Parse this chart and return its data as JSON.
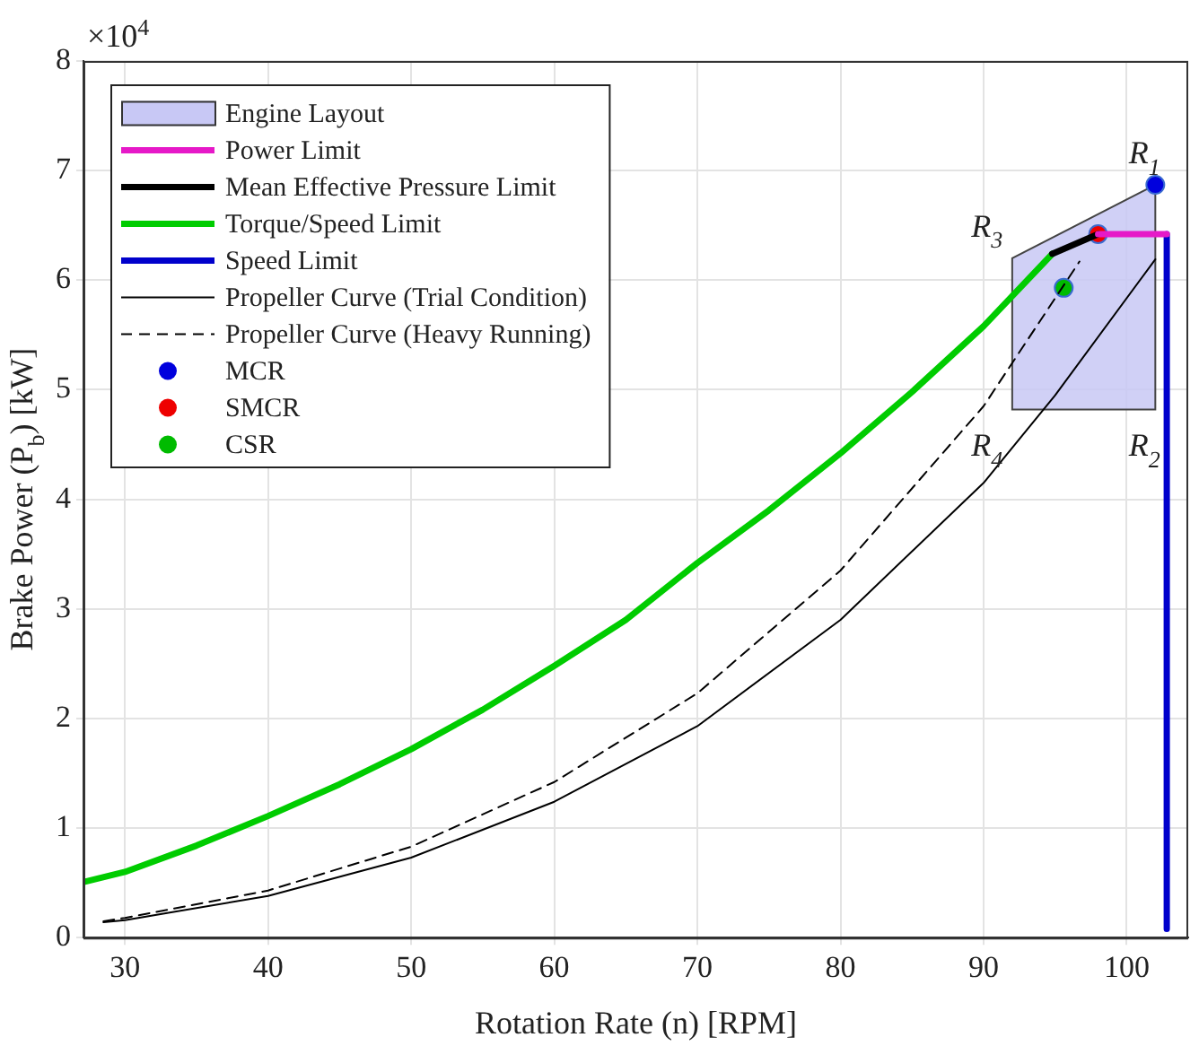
{
  "chart_data": {
    "type": "line",
    "xlabel": "Rotation Rate (n) [RPM]",
    "ylabel": "Brake Power (P$_{b}$) [kW]",
    "xlim": [
      27.1,
      104.3
    ],
    "xticks": [
      30,
      40,
      50,
      60,
      70,
      80,
      90,
      100
    ],
    "ylim": [
      0,
      8
    ],
    "yticks": [
      0,
      1,
      2,
      3,
      4,
      5,
      6,
      7,
      8
    ],
    "grid": true,
    "legend": "top left",
    "marker": "none",
    "annotations": [
      "×10$^{4}$",
      "R$_{1}$",
      "R$_{2}$",
      "R$_{4}$",
      "R$_{3}$"
    ],
    "series": [
      {
        "name": "Engine Layout",
        "type": "area",
        "color": "#c8c8f5",
        "x": [
          102,
          102,
          92,
          92,
          102
        ],
        "values": [
          6.87,
          4.82,
          4.82,
          6.2,
          6.87
        ]
      },
      {
        "name": "Power Limit",
        "color": "#e619c8",
        "x": [
          98,
          102.8
        ],
        "values": [
          6.42,
          6.42
        ]
      },
      {
        "name": "Mean Effective Pressure Limit",
        "color": "#000000",
        "x": [
          94.8,
          98
        ],
        "values": [
          6.24,
          6.42
        ]
      },
      {
        "name": "Torque/Speed Limit",
        "color": "#00cc00",
        "x": [
          27.2,
          30,
          35,
          40,
          45,
          50,
          55,
          60,
          65,
          70,
          75,
          80,
          85,
          90,
          94.8
        ],
        "values": [
          0.51,
          0.6,
          0.84,
          1.11,
          1.4,
          1.72,
          2.08,
          2.48,
          2.9,
          3.42,
          3.9,
          4.42,
          4.98,
          5.58,
          6.24
        ]
      },
      {
        "name": "Speed Limit",
        "color": "#0000cc",
        "x": [
          102.8,
          102.8
        ],
        "values": [
          6.42,
          0.08
        ]
      },
      {
        "name": "Propeller Curve (Trial Condition)",
        "color": "#000000",
        "line_style": "solid",
        "x": [
          28.5,
          30,
          40,
          50,
          60,
          70,
          80,
          90,
          95,
          102
        ],
        "values": [
          0.14,
          0.16,
          0.38,
          0.73,
          1.24,
          1.93,
          2.9,
          4.15,
          4.95,
          6.19
        ]
      },
      {
        "name": "Propeller Curve (Heavy Running)",
        "color": "#000000",
        "line_style": "dashed",
        "x": [
          28.5,
          30,
          40,
          50,
          60,
          70,
          80,
          90,
          96.7
        ],
        "values": [
          0.15,
          0.18,
          0.43,
          0.83,
          1.42,
          2.23,
          3.35,
          4.85,
          6.17
        ]
      },
      {
        "name": "MCR",
        "type": "scatter",
        "marker": "circle",
        "color": "#0000dd",
        "x": [
          102
        ],
        "values": [
          6.87
        ]
      },
      {
        "name": "SMCR",
        "type": "scatter",
        "marker": "circle",
        "color": "#ee0000",
        "x": [
          98
        ],
        "values": [
          6.42
        ]
      },
      {
        "name": "CSR",
        "type": "scatter",
        "marker": "circle",
        "color": "#00bb00",
        "x": [
          95.6
        ],
        "values": [
          5.93
        ]
      }
    ]
  }
}
